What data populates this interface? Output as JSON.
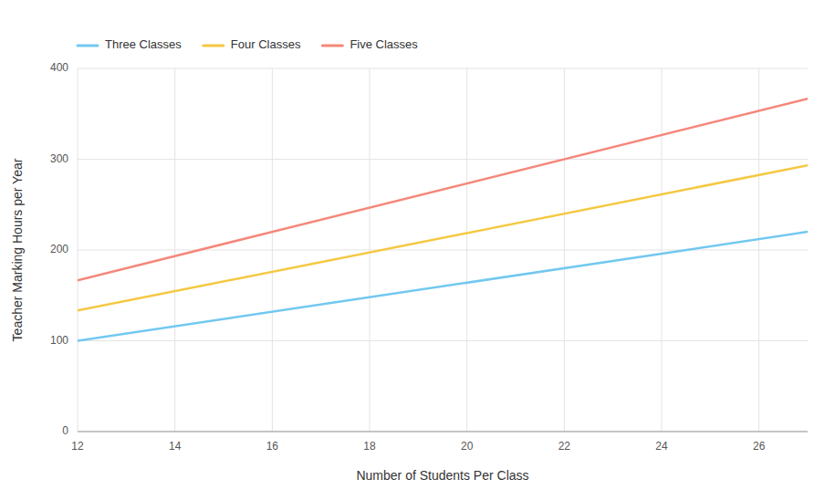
{
  "chart_data": {
    "type": "line",
    "xlabel": "Number of Students Per Class",
    "ylabel": "Teacher Marking Hours per Year",
    "x": [
      12,
      27
    ],
    "series": [
      {
        "name": "Three Classes",
        "color": "#72C8F0",
        "values": [
          100,
          220
        ]
      },
      {
        "name": "Four Classes",
        "color": "#F5C842",
        "values": [
          133.33,
          293.335
        ]
      },
      {
        "name": "Five Classes",
        "color": "#F5877A",
        "values": [
          166.67,
          366.665
        ]
      }
    ],
    "xlim": [
      12,
      27
    ],
    "ylim": [
      0,
      400
    ],
    "xticks": [
      12,
      14,
      16,
      18,
      20,
      22,
      24,
      26
    ],
    "yticks": [
      0,
      100,
      200,
      300,
      400
    ],
    "grid": true,
    "legend": "top"
  }
}
